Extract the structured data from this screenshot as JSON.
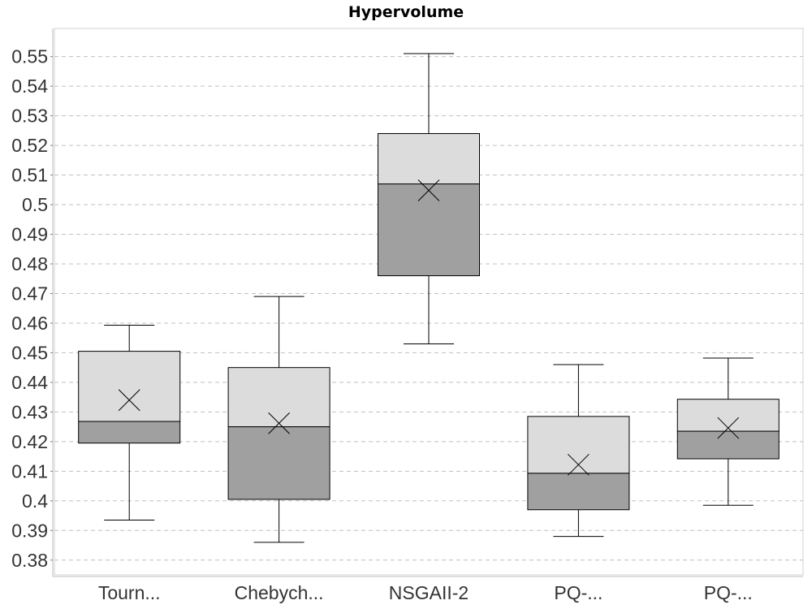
{
  "chart_data": {
    "type": "box",
    "title": "Hypervolume",
    "xlabel": "",
    "ylabel": "",
    "ylim": [
      0.375,
      0.5595
    ],
    "yticks": [
      "0.38",
      "0.39",
      "0.4",
      "0.41",
      "0.42",
      "0.43",
      "0.44",
      "0.45",
      "0.46",
      "0.47",
      "0.48",
      "0.49",
      "0.5",
      "0.51",
      "0.52",
      "0.53",
      "0.54",
      "0.55"
    ],
    "grid": true,
    "colors": {
      "upper_box": "#dcdcdc",
      "lower_box": "#a0a0a0",
      "stroke": "#000000",
      "grid": "#c0c0c0"
    },
    "categories": [
      "Tourn...",
      "Chebych...",
      "NSGAII-2",
      "PQ-...",
      "PQ-..."
    ],
    "boxes": [
      {
        "whisker_low": 0.3935,
        "q1": 0.4195,
        "median": 0.4268,
        "q3": 0.4505,
        "whisker_high": 0.4593,
        "mean": 0.434
      },
      {
        "whisker_low": 0.386,
        "q1": 0.4005,
        "median": 0.425,
        "q3": 0.445,
        "whisker_high": 0.469,
        "mean": 0.4262
      },
      {
        "whisker_low": 0.453,
        "q1": 0.476,
        "median": 0.507,
        "q3": 0.524,
        "whisker_high": 0.551,
        "mean": 0.5048
      },
      {
        "whisker_low": 0.388,
        "q1": 0.397,
        "median": 0.4093,
        "q3": 0.4285,
        "whisker_high": 0.446,
        "mean": 0.4122
      },
      {
        "whisker_low": 0.3985,
        "q1": 0.4142,
        "median": 0.4235,
        "q3": 0.4343,
        "whisker_high": 0.4482,
        "mean": 0.4246
      }
    ]
  }
}
